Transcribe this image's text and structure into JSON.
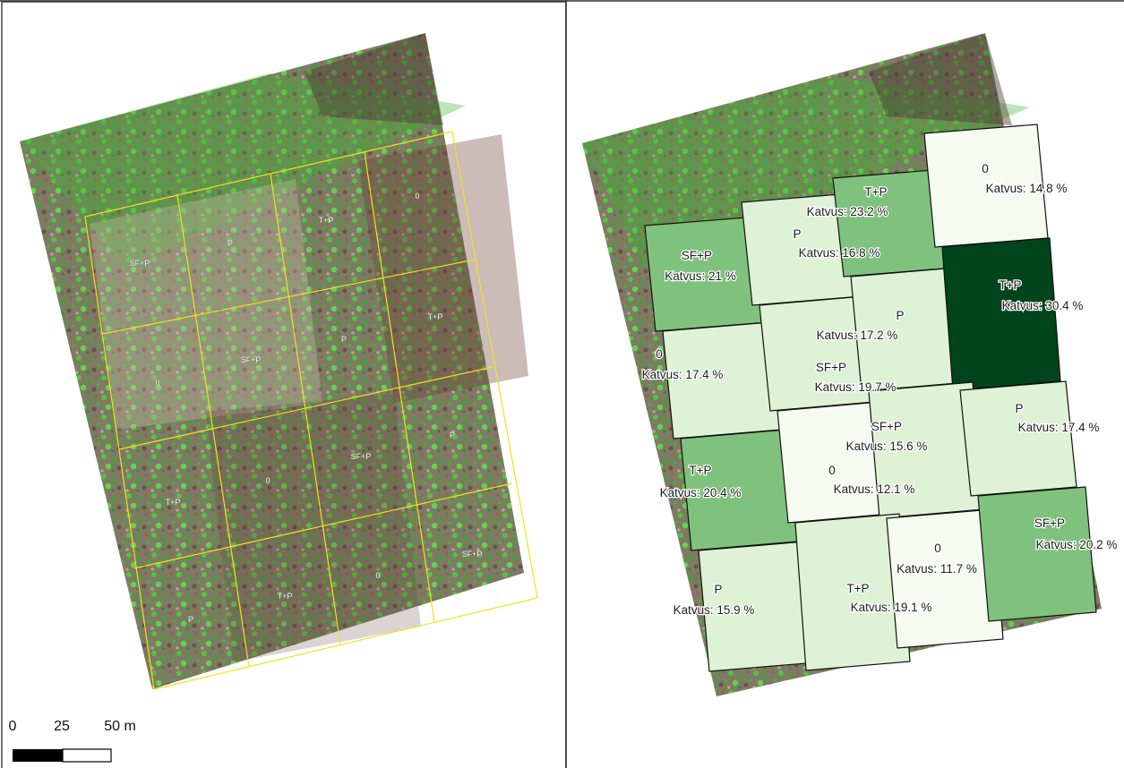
{
  "left_map": {
    "plot_labels": [
      {
        "id": "r1c1",
        "name": "SF+P"
      },
      {
        "id": "r1c2",
        "name": "P"
      },
      {
        "id": "r1c3",
        "name": "T+P"
      },
      {
        "id": "r1c4",
        "name": "0"
      },
      {
        "id": "r2c1",
        "name": "0"
      },
      {
        "id": "r2c2",
        "name": "SF+P"
      },
      {
        "id": "r2c3",
        "name": "P"
      },
      {
        "id": "r2c4",
        "name": "T+P"
      },
      {
        "id": "r3c1",
        "name": "T+P"
      },
      {
        "id": "r3c2",
        "name": "0"
      },
      {
        "id": "r3c3",
        "name": "SF+P"
      },
      {
        "id": "r3c4",
        "name": "P"
      },
      {
        "id": "r4c1",
        "name": "P"
      },
      {
        "id": "r4c2",
        "name": "T+P"
      },
      {
        "id": "r4c3",
        "name": "0"
      },
      {
        "id": "r4c4",
        "name": "SF+P"
      }
    ],
    "grid_line_color": "#f2e21c",
    "scale_bar": {
      "tick_labels": [
        "0",
        "25",
        "50 m"
      ]
    }
  },
  "right_map": {
    "plots": [
      {
        "id": "r1c1",
        "name": "SF+P",
        "coverage": "Katvus: 21 %",
        "coverage_value": 21
      },
      {
        "id": "r1c2",
        "name": "P",
        "coverage": "Katvus: 16.8 %",
        "coverage_value": 16.8
      },
      {
        "id": "r1c3",
        "name": "T+P",
        "coverage": "Katvus: 23.2 %",
        "coverage_value": 23.2
      },
      {
        "id": "r1c4",
        "name": "0",
        "coverage": "Katvus: 14.8 %",
        "coverage_value": 14.8
      },
      {
        "id": "r2c1",
        "name": "0",
        "coverage": "Katvus: 17.4 %",
        "coverage_value": 17.4
      },
      {
        "id": "r2c2",
        "name": "SF+P",
        "coverage": "Katvus: 19.7 %",
        "coverage_value": 19.7
      },
      {
        "id": "r2c3",
        "name": "P",
        "coverage": "Katvus: 17.2 %",
        "coverage_value": 17.2
      },
      {
        "id": "r2c4",
        "name": "T+P",
        "coverage": "Katvus: 30.4 %",
        "coverage_value": 30.4
      },
      {
        "id": "r3c1",
        "name": "T+P",
        "coverage": "Katvus: 20.4 %",
        "coverage_value": 20.4
      },
      {
        "id": "r3c2",
        "name": "0",
        "coverage": "Katvus: 12.1 %",
        "coverage_value": 12.1
      },
      {
        "id": "r3c3",
        "name": "SF+P",
        "coverage": "Katvus: 15.6 %",
        "coverage_value": 15.6
      },
      {
        "id": "r3c4",
        "name": "P",
        "coverage": "Katvus: 17.4 %",
        "coverage_value": 17.4
      },
      {
        "id": "r4c1",
        "name": "P",
        "coverage": "Katvus: 15.9 %",
        "coverage_value": 15.9
      },
      {
        "id": "r4c2",
        "name": "T+P",
        "coverage": "Katvus: 19.1 %",
        "coverage_value": 19.1
      },
      {
        "id": "r4c3",
        "name": "0",
        "coverage": "Katvus: 11.7 %",
        "coverage_value": 11.7
      },
      {
        "id": "r4c4",
        "name": "SF+P",
        "coverage": "Katvus: 20.2 %",
        "coverage_value": 20.2
      }
    ],
    "fill_classes": {
      "very_light": "#f6fbf2",
      "light": "#def2d6",
      "medium": "#7fc27d",
      "dark": "#00441b"
    }
  }
}
